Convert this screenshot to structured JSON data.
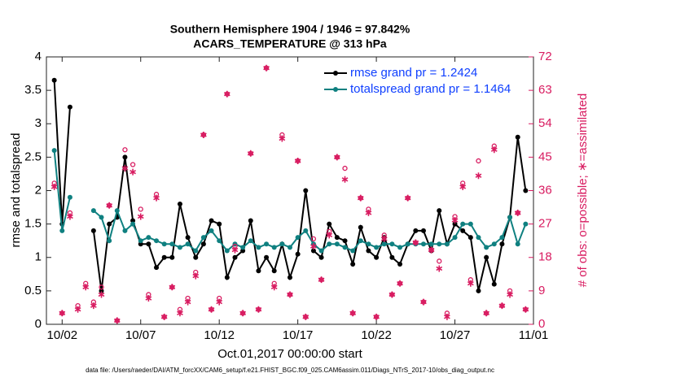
{
  "chart_data": {
    "type": "line",
    "title": "Southern Hemisphere 1904 / 1946 = 97.842%",
    "subtitle": "ACARS_TEMPERATURE @ 313 hPa",
    "xlabel": "Oct.01,2017 00:00:00 start",
    "ylabel": "rmse and totalspread",
    "y2label": "# of obs: o=possible; ∗=assimilated",
    "footnote": "data file: /Users/raeder/DAI/ATM_forcXX/CAM6_setup/f.e21.FHIST_BGC.f09_025.CAM6assim.011/Diags_NTrS_2017-10/obs_diag_output.nc",
    "x": [
      0.5,
      1,
      1.5,
      2,
      2.5,
      3,
      3.5,
      4,
      4.5,
      5,
      5.5,
      6,
      6.5,
      7,
      7.5,
      8,
      8.5,
      9,
      9.5,
      10,
      10.5,
      11,
      11.5,
      12,
      12.5,
      13,
      13.5,
      14,
      14.5,
      15,
      15.5,
      16,
      16.5,
      17,
      17.5,
      18,
      18.5,
      19,
      19.5,
      20,
      20.5,
      21,
      21.5,
      22,
      22.5,
      23,
      23.5,
      24,
      24.5,
      25,
      25.5,
      26,
      26.5,
      27,
      27.5,
      28,
      28.5,
      29,
      29.5,
      30,
      30.5
    ],
    "xlim": [
      0,
      31
    ],
    "xticks": [
      {
        "value": 1,
        "label": "10/02"
      },
      {
        "value": 6,
        "label": "10/07"
      },
      {
        "value": 11,
        "label": "10/12"
      },
      {
        "value": 16,
        "label": "10/17"
      },
      {
        "value": 21,
        "label": "10/22"
      },
      {
        "value": 26,
        "label": "10/27"
      },
      {
        "value": 31,
        "label": "11/01"
      }
    ],
    "ylim": [
      0,
      4
    ],
    "yticks": [
      0,
      0.5,
      1,
      1.5,
      2,
      2.5,
      3,
      3.5,
      4
    ],
    "y2lim": [
      0,
      72
    ],
    "y2ticks": [
      0,
      9,
      18,
      27,
      36,
      45,
      54,
      63,
      72
    ],
    "legend": "upper right",
    "series": [
      {
        "name": "rmse grand pr = 1.2424",
        "color": "#000000",
        "marker": "o",
        "values": [
          3.65,
          1.5,
          3.25,
          null,
          null,
          1.4,
          0.5,
          1.5,
          1.6,
          2.5,
          1.55,
          1.2,
          1.2,
          0.85,
          1.0,
          1.0,
          1.8,
          1.3,
          1.0,
          1.2,
          1.55,
          1.5,
          0.7,
          1.0,
          1.1,
          1.55,
          0.8,
          1.0,
          0.8,
          1.2,
          0.7,
          1.05,
          2.0,
          1.1,
          1.0,
          1.5,
          1.3,
          1.25,
          0.9,
          1.45,
          1.1,
          1.0,
          1.3,
          1.0,
          0.9,
          1.2,
          1.4,
          1.4,
          1.1,
          1.7,
          1.2,
          1.5,
          1.4,
          1.3,
          0.5,
          1.0,
          0.6,
          1.2,
          1.6,
          2.8,
          2.0
        ]
      },
      {
        "name": "totalspread grand pr = 1.1464",
        "color": "#0f8080",
        "marker": "o",
        "values": [
          2.6,
          1.4,
          1.9,
          null,
          null,
          1.7,
          1.6,
          1.25,
          1.7,
          1.4,
          1.5,
          1.25,
          1.3,
          1.25,
          1.2,
          1.2,
          1.15,
          1.2,
          1.1,
          1.3,
          1.4,
          1.25,
          1.1,
          1.2,
          1.15,
          1.25,
          1.15,
          1.2,
          1.15,
          1.2,
          1.15,
          1.3,
          1.4,
          1.2,
          1.1,
          1.2,
          1.2,
          1.15,
          1.1,
          1.25,
          1.2,
          1.15,
          1.2,
          1.2,
          1.15,
          1.2,
          1.2,
          1.2,
          1.2,
          1.2,
          1.2,
          1.3,
          1.5,
          1.5,
          1.3,
          1.15,
          1.2,
          1.3,
          1.6,
          1.2,
          1.5
        ]
      },
      {
        "axis": "y2",
        "color": "#d81b60",
        "marker": "circle",
        "values": [
          38,
          3,
          30,
          5,
          11,
          6,
          10,
          32,
          1,
          47,
          43,
          31,
          8,
          35,
          2,
          10,
          4,
          7,
          14,
          51,
          4,
          7,
          62,
          21,
          3,
          46,
          4,
          69,
          11,
          51,
          8,
          44,
          2,
          23,
          12,
          25,
          45,
          42,
          3,
          34,
          31,
          2,
          24,
          8,
          11,
          34,
          22,
          6,
          20,
          17,
          3,
          29,
          38,
          12,
          44,
          3,
          48,
          5,
          9,
          30,
          4
        ]
      },
      {
        "axis": "y2",
        "color": "#d81b60",
        "marker": "asterisk",
        "values": [
          37,
          3,
          29,
          4,
          10,
          5,
          8,
          32,
          1,
          42,
          41,
          29,
          7,
          34,
          2,
          10,
          3,
          6,
          13,
          51,
          4,
          6,
          62,
          20,
          3,
          46,
          4,
          69,
          10,
          50,
          8,
          44,
          2,
          21,
          12,
          24,
          45,
          39,
          3,
          34,
          30,
          2,
          23,
          8,
          11,
          34,
          22,
          6,
          20,
          15,
          2,
          28,
          37,
          11,
          40,
          3,
          47,
          5,
          8,
          30,
          4
        ]
      }
    ]
  }
}
